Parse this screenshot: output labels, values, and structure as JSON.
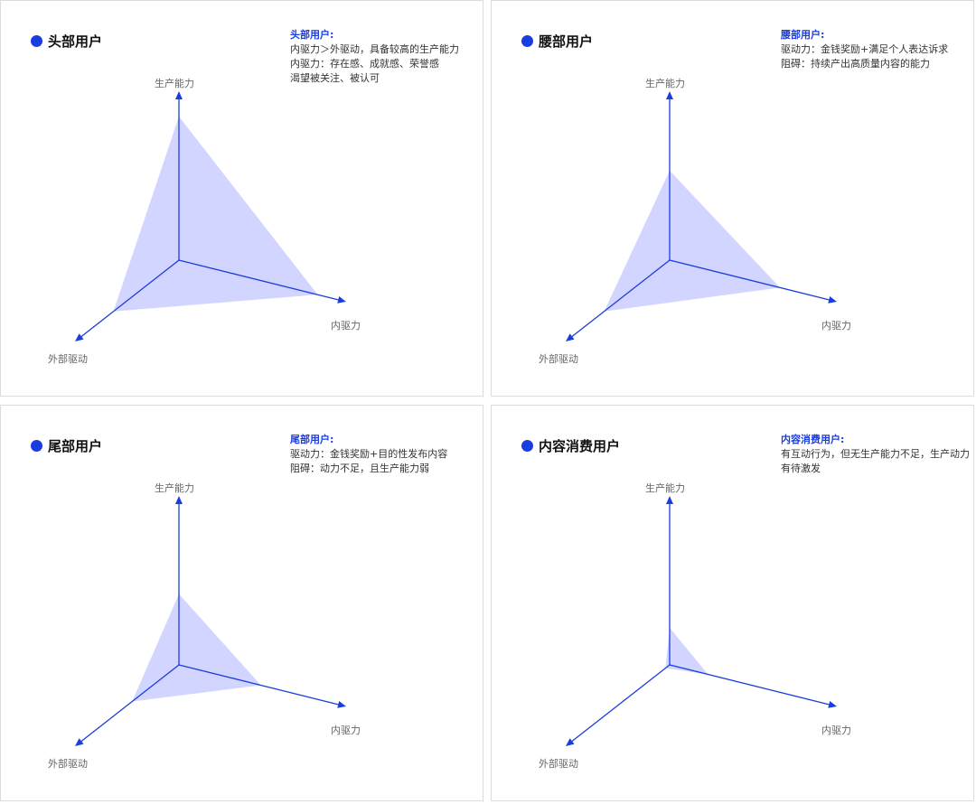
{
  "axes": {
    "production": "生产能力",
    "internal": "内驱力",
    "external": "外部驱动"
  },
  "colors": {
    "accent": "#1a3de0",
    "fill": "#c9ceff"
  },
  "panels": [
    {
      "title": "头部用户",
      "desc_head": "头部用户:",
      "desc_lines": [
        "内驱力＞外驱动，具备较高的生产能力",
        "内驱力：存在感、成就感、荣誉感",
        "渴望被关注、被认可"
      ],
      "levels": {
        "production": 0.85,
        "internal": 0.83,
        "external": 0.63
      }
    },
    {
      "title": "腰部用户",
      "desc_head": "腰部用户:",
      "desc_lines": [
        "驱动力：金钱奖励+满足个人表达诉求",
        "阻碍：持续产出高质量内容的能力"
      ],
      "levels": {
        "production": 0.53,
        "internal": 0.66,
        "external": 0.63
      }
    },
    {
      "title": "尾部用户",
      "desc_head": "尾部用户:",
      "desc_lines": [
        "驱动力：金钱奖励+目的性发布内容",
        "阻碍：动力不足，且生产能力弱"
      ],
      "levels": {
        "production": 0.42,
        "internal": 0.49,
        "external": 0.45
      }
    },
    {
      "title": "内容消费用户",
      "desc_head": "内容消费用户:",
      "desc_lines": [
        "有互动行为，但无生产能力不足，生产动力有待激发"
      ],
      "levels": {
        "production": 0.22,
        "internal": 0.23,
        "external": 0.04
      }
    }
  ]
}
